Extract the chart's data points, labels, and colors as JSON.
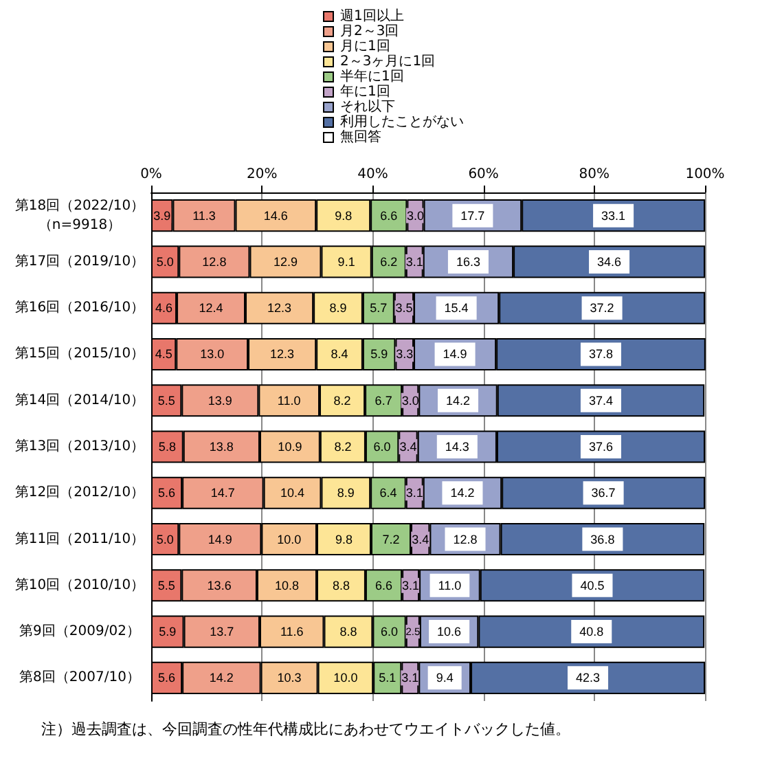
{
  "chart_data": {
    "type": "bar",
    "orientation": "horizontal",
    "stacked": true,
    "grid": "x",
    "legend": "top",
    "categories": [
      "第18回（2022/10）（n=9918）",
      "第17回（2019/10）",
      "第16回（2016/10）",
      "第15回（2015/10）",
      "第14回（2014/10）",
      "第13回（2013/10）",
      "第12回（2012/10）",
      "第11回（2011/10）",
      "第10回（2010/10）",
      "第9回（2009/02）",
      "第8回（2007/10）"
    ],
    "xlim": [
      0,
      100
    ],
    "xticks": [
      {
        "value": 0,
        "label": "0%"
      },
      {
        "value": 20,
        "label": "20%"
      },
      {
        "value": 40,
        "label": "40%"
      },
      {
        "value": 60,
        "label": "60%"
      },
      {
        "value": 80,
        "label": "80%"
      },
      {
        "value": 100,
        "label": "100%"
      }
    ],
    "series": [
      {
        "name": "週1回以上",
        "color": "#e8776b",
        "values": [
          3.9,
          5.0,
          4.6,
          4.5,
          5.5,
          5.8,
          5.6,
          5.0,
          5.5,
          5.9,
          5.6
        ],
        "value_labels": [
          "3.9",
          "5.0",
          "4.6",
          "4.5",
          "5.5",
          "5.8",
          "5.6",
          "5.0",
          "5.5",
          "5.9",
          "5.6"
        ]
      },
      {
        "name": "月2～3回",
        "color": "#efa08a",
        "values": [
          11.3,
          12.8,
          12.4,
          13.0,
          13.9,
          13.8,
          14.7,
          14.9,
          13.6,
          13.7,
          14.2
        ],
        "value_labels": [
          "11.3",
          "12.8",
          "12.4",
          "13.0",
          "13.9",
          "13.8",
          "14.7",
          "14.9",
          "13.6",
          "13.7",
          "14.2"
        ]
      },
      {
        "name": "月に1回",
        "color": "#f8c693",
        "values": [
          14.6,
          12.9,
          12.3,
          12.3,
          11.0,
          10.9,
          10.4,
          10.0,
          10.8,
          11.6,
          10.3
        ],
        "value_labels": [
          "14.6",
          "12.9",
          "12.3",
          "12.3",
          "11.0",
          "10.9",
          "10.4",
          "10.0",
          "10.8",
          "11.6",
          "10.3"
        ]
      },
      {
        "name": "2～3ヶ月に1回",
        "color": "#fde596",
        "values": [
          9.8,
          9.1,
          8.9,
          8.4,
          8.2,
          8.2,
          8.9,
          9.8,
          8.8,
          8.8,
          10.0
        ],
        "value_labels": [
          "9.8",
          "9.1",
          "8.9",
          "8.4",
          "8.2",
          "8.2",
          "8.9",
          "9.8",
          "8.8",
          "8.8",
          "10.0"
        ]
      },
      {
        "name": "半年に1回",
        "color": "#9ccb86",
        "values": [
          6.6,
          6.2,
          5.7,
          5.9,
          6.7,
          6.0,
          6.4,
          7.2,
          6.6,
          6.0,
          5.1
        ],
        "value_labels": [
          "6.6",
          "6.2",
          "5.7",
          "5.9",
          "6.7",
          "6.0",
          "6.4",
          "7.2",
          "6.6",
          "6.0",
          "5.1"
        ]
      },
      {
        "name": "年に1回",
        "color": "#c2a3c7",
        "values": [
          3.0,
          3.1,
          3.5,
          3.3,
          3.0,
          3.4,
          3.1,
          3.4,
          3.1,
          2.5,
          3.1
        ],
        "value_labels": [
          "3.0",
          "3.1",
          "3.5",
          "3.3",
          "3.0",
          "3.4",
          "3.1",
          "3.4",
          "3.1",
          "2.5",
          "3.1"
        ]
      },
      {
        "name": "それ以下",
        "color": "#98a2cb",
        "values": [
          17.7,
          16.3,
          15.4,
          14.9,
          14.2,
          14.3,
          14.2,
          12.8,
          11.0,
          10.6,
          9.4
        ],
        "value_labels": [
          "17.7",
          "16.3",
          "15.4",
          "14.9",
          "14.2",
          "14.3",
          "14.2",
          "12.8",
          "11.0",
          "10.6",
          "9.4"
        ]
      },
      {
        "name": "利用したことがない",
        "color": "#5470a4",
        "values": [
          33.1,
          34.6,
          37.2,
          37.8,
          37.4,
          37.6,
          36.7,
          36.8,
          40.5,
          40.8,
          42.3
        ],
        "value_labels": [
          "33.1",
          "34.6",
          "37.2",
          "37.8",
          "37.4",
          "37.6",
          "36.7",
          "36.8",
          "40.5",
          "40.8",
          "42.3"
        ]
      },
      {
        "name": "無回答",
        "color": "#ffffff",
        "values": [
          null,
          null,
          null,
          null,
          null,
          null,
          null,
          null,
          null,
          null,
          null
        ]
      }
    ],
    "annotations": [
      "注）過去調査は、今回調査の性年代構成比にあわせてウエイトバックした値。"
    ]
  }
}
